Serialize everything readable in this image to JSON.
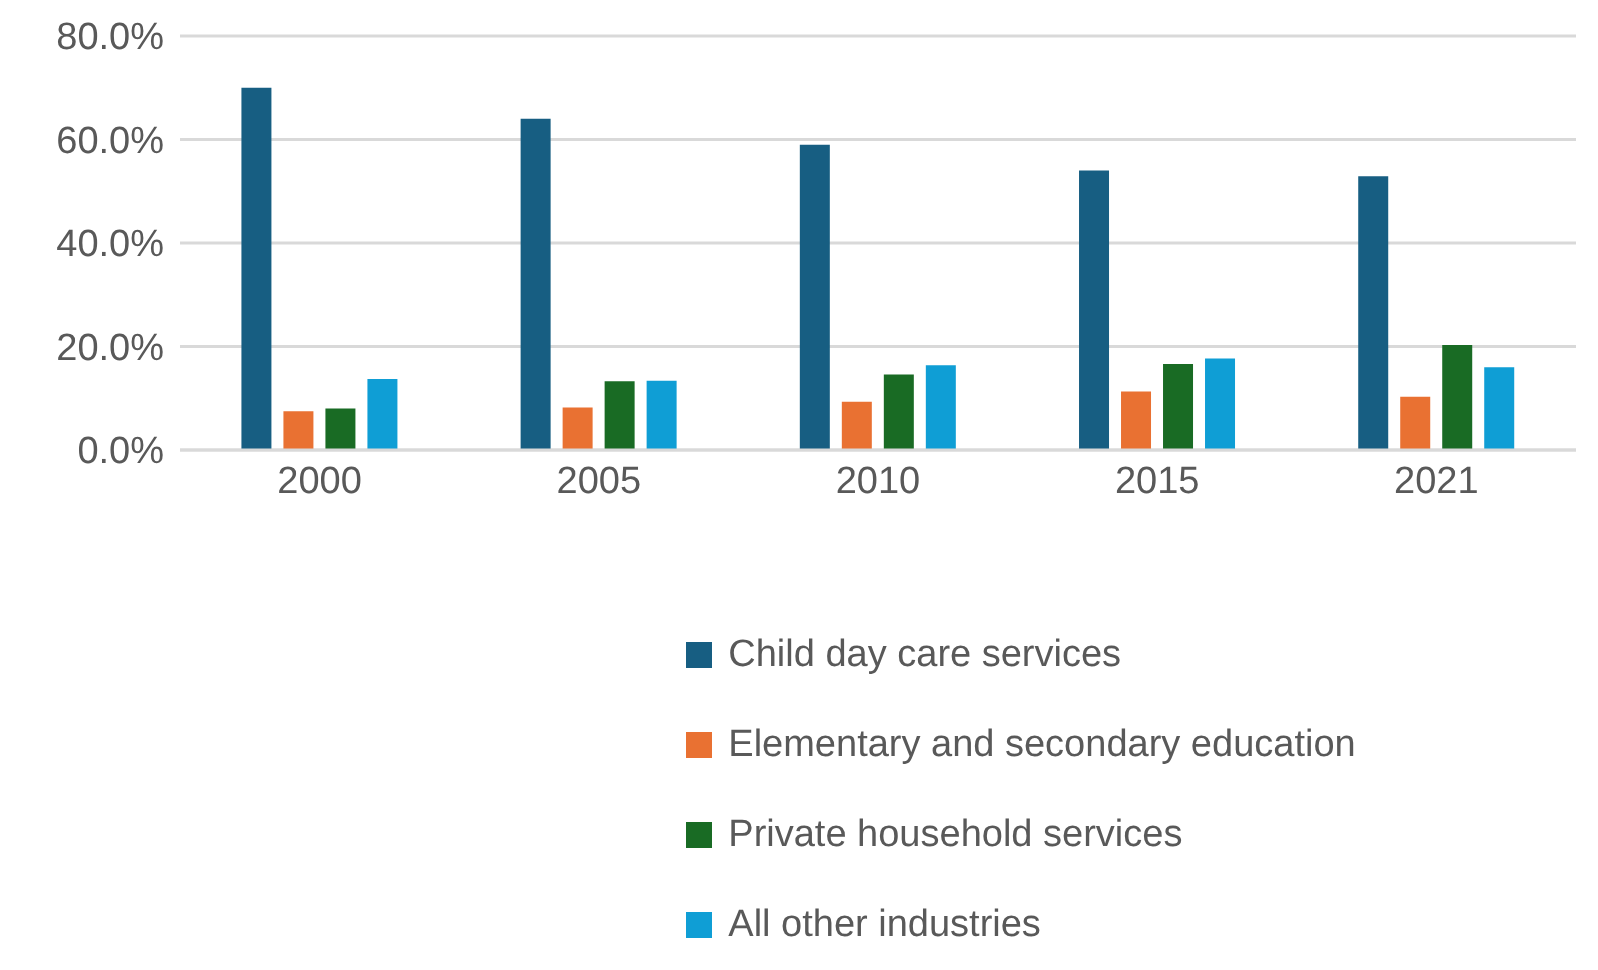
{
  "chart_data": {
    "type": "bar",
    "categories": [
      "2000",
      "2005",
      "2010",
      "2015",
      "2021"
    ],
    "series": [
      {
        "name": "Child day care services",
        "color": "#175e82",
        "values": [
          70,
          64,
          59,
          54,
          52.9
        ]
      },
      {
        "name": "Elementary and secondary education",
        "color": "#e97132",
        "values": [
          7.5,
          8.2,
          9.3,
          11.3,
          10.3
        ]
      },
      {
        "name": "Private household services",
        "color": "#196b24",
        "values": [
          8,
          13.3,
          14.6,
          16.6,
          20.3
        ]
      },
      {
        "name": "All other industries",
        "color": "#0f9ed5",
        "values": [
          13.7,
          13.4,
          16.4,
          17.7,
          16
        ]
      }
    ],
    "ylim": [
      0,
      80
    ],
    "yticks": [
      {
        "value": 0,
        "label": "0.0%"
      },
      {
        "value": 20,
        "label": "20.0%"
      },
      {
        "value": 40,
        "label": "40.0%"
      },
      {
        "value": 60,
        "label": "60.0%"
      },
      {
        "value": 80,
        "label": "80.0%"
      }
    ],
    "grid": "y",
    "legend": "bottom"
  }
}
